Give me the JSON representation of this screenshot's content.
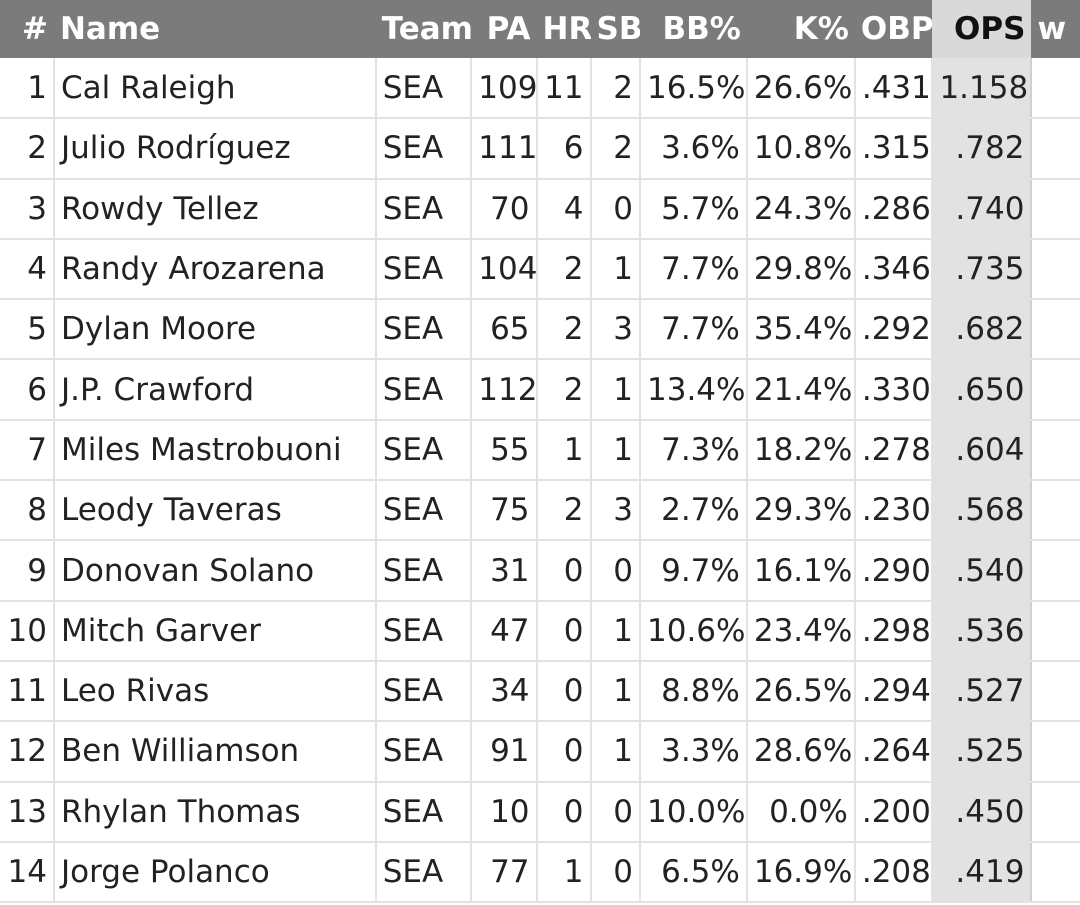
{
  "table": {
    "headers": {
      "rank": "#",
      "name": "Name",
      "team": "Team",
      "pa": "PA",
      "hr": "HR",
      "sb": "SB",
      "bb_pct": "BB%",
      "k_pct": "K%",
      "obp": "OBP",
      "ops": "OPS",
      "truncated": "w"
    },
    "sorted_column": "OPS",
    "rows": [
      {
        "rank": "1",
        "name": "Cal Raleigh",
        "team": "SEA",
        "pa": "109",
        "hr": "11",
        "sb": "2",
        "bb_pct": "16.5%",
        "k_pct": "26.6%",
        "obp": ".431",
        "ops": "1.158"
      },
      {
        "rank": "2",
        "name": "Julio Rodríguez",
        "team": "SEA",
        "pa": "111",
        "hr": "6",
        "sb": "2",
        "bb_pct": "3.6%",
        "k_pct": "10.8%",
        "obp": ".315",
        "ops": ".782"
      },
      {
        "rank": "3",
        "name": "Rowdy Tellez",
        "team": "SEA",
        "pa": "70",
        "hr": "4",
        "sb": "0",
        "bb_pct": "5.7%",
        "k_pct": "24.3%",
        "obp": ".286",
        "ops": ".740"
      },
      {
        "rank": "4",
        "name": "Randy Arozarena",
        "team": "SEA",
        "pa": "104",
        "hr": "2",
        "sb": "1",
        "bb_pct": "7.7%",
        "k_pct": "29.8%",
        "obp": ".346",
        "ops": ".735"
      },
      {
        "rank": "5",
        "name": "Dylan Moore",
        "team": "SEA",
        "pa": "65",
        "hr": "2",
        "sb": "3",
        "bb_pct": "7.7%",
        "k_pct": "35.4%",
        "obp": ".292",
        "ops": ".682"
      },
      {
        "rank": "6",
        "name": "J.P. Crawford",
        "team": "SEA",
        "pa": "112",
        "hr": "2",
        "sb": "1",
        "bb_pct": "13.4%",
        "k_pct": "21.4%",
        "obp": ".330",
        "ops": ".650"
      },
      {
        "rank": "7",
        "name": "Miles Mastrobuoni",
        "team": "SEA",
        "pa": "55",
        "hr": "1",
        "sb": "1",
        "bb_pct": "7.3%",
        "k_pct": "18.2%",
        "obp": ".278",
        "ops": ".604"
      },
      {
        "rank": "8",
        "name": "Leody Taveras",
        "team": "SEA",
        "pa": "75",
        "hr": "2",
        "sb": "3",
        "bb_pct": "2.7%",
        "k_pct": "29.3%",
        "obp": ".230",
        "ops": ".568"
      },
      {
        "rank": "9",
        "name": "Donovan Solano",
        "team": "SEA",
        "pa": "31",
        "hr": "0",
        "sb": "0",
        "bb_pct": "9.7%",
        "k_pct": "16.1%",
        "obp": ".290",
        "ops": ".540"
      },
      {
        "rank": "10",
        "name": "Mitch Garver",
        "team": "SEA",
        "pa": "47",
        "hr": "0",
        "sb": "1",
        "bb_pct": "10.6%",
        "k_pct": "23.4%",
        "obp": ".298",
        "ops": ".536"
      },
      {
        "rank": "11",
        "name": "Leo Rivas",
        "team": "SEA",
        "pa": "34",
        "hr": "0",
        "sb": "1",
        "bb_pct": "8.8%",
        "k_pct": "26.5%",
        "obp": ".294",
        "ops": ".527"
      },
      {
        "rank": "12",
        "name": "Ben Williamson",
        "team": "SEA",
        "pa": "91",
        "hr": "0",
        "sb": "1",
        "bb_pct": "3.3%",
        "k_pct": "28.6%",
        "obp": ".264",
        "ops": ".525"
      },
      {
        "rank": "13",
        "name": "Rhylan Thomas",
        "team": "SEA",
        "pa": "10",
        "hr": "0",
        "sb": "0",
        "bb_pct": "10.0%",
        "k_pct": "0.0%",
        "obp": ".200",
        "ops": ".450"
      },
      {
        "rank": "14",
        "name": "Jorge Polanco",
        "team": "SEA",
        "pa": "77",
        "hr": "1",
        "sb": "0",
        "bb_pct": "6.5%",
        "k_pct": "16.9%",
        "obp": ".208",
        "ops": ".419"
      }
    ]
  },
  "colors": {
    "header_bg": "#7b7b7b",
    "header_text": "#ffffff",
    "sorted_header_bg": "#d9d9d9",
    "sorted_column_bg": "#e2e2e2",
    "grid_line": "#e2e2e2"
  }
}
